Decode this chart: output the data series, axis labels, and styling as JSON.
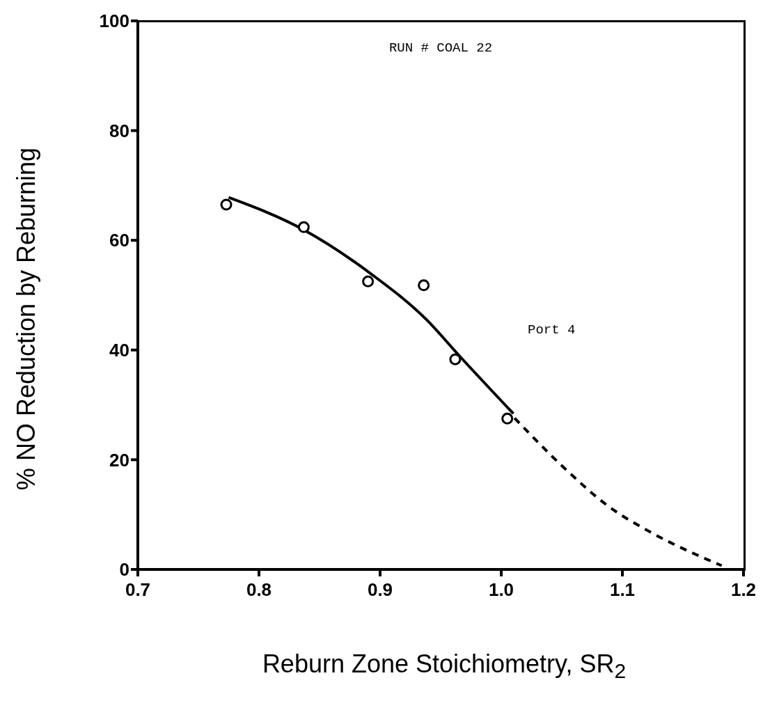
{
  "chart_data": {
    "type": "scatter",
    "xlabel": "Reburn Zone Stoichiometry, SR$_{2}$",
    "ylabel": "% NO Reduction by Reburning",
    "xlim": [
      0.7,
      1.2
    ],
    "xticks": [
      {
        "value": 0.7,
        "label": "0.7"
      },
      {
        "value": 0.8,
        "label": "0.8"
      },
      {
        "value": 0.9,
        "label": "0.9"
      },
      {
        "value": 1.0,
        "label": "1.0"
      },
      {
        "value": 1.1,
        "label": "1.1"
      },
      {
        "value": 1.2,
        "label": "1.2"
      }
    ],
    "ylim": [
      0,
      100
    ],
    "yticks": [
      0,
      20,
      40,
      60,
      80,
      100
    ],
    "grid": false,
    "legend": false,
    "annotations": [
      "RUN # COAL 22",
      "Port 4"
    ],
    "series": [
      {
        "marker": "circle",
        "color": "#000000",
        "x": [
          0.773,
          0.837,
          0.89,
          0.936,
          0.962,
          1.005
        ],
        "values": [
          66.5,
          62.4,
          52.5,
          51.8,
          38.3,
          27.5
        ]
      },
      {
        "type": "line",
        "marker": "none",
        "line_style": "solid",
        "color": "#000000",
        "x": [
          0.775,
          0.837,
          0.893,
          0.938,
          0.966,
          1.01
        ],
        "values": [
          67.8,
          61.9,
          53.8,
          45.6,
          38.8,
          28.4
        ]
      },
      {
        "type": "line",
        "marker": "none",
        "line_style": "dashed",
        "color": "#000000",
        "x": [
          1.011,
          1.052,
          1.088,
          1.124,
          1.161,
          1.182
        ],
        "values": [
          27.6,
          18.5,
          11.6,
          6.7,
          2.7,
          0.7
        ]
      }
    ]
  }
}
